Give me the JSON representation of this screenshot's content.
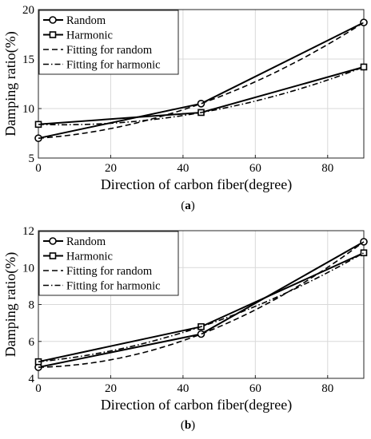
{
  "chart_data": [
    {
      "type": "line",
      "panel_label": {
        "open": "(",
        "letter": "a",
        "close": ")"
      },
      "title": "",
      "xlabel": "Direction of carbon fiber(degree)",
      "ylabel": "Damping ratio(%)",
      "xlim": [
        0,
        90
      ],
      "ylim": [
        5,
        20
      ],
      "xticks": [
        0,
        20,
        40,
        60,
        80
      ],
      "yticks": [
        5,
        10,
        15,
        20
      ],
      "grid": true,
      "legend_position": "top-left",
      "series": [
        {
          "name": "Random",
          "style": "solid",
          "marker": "circle",
          "x": [
            0,
            45,
            90
          ],
          "y": [
            7.0,
            10.5,
            18.7
          ]
        },
        {
          "name": "Harmonic",
          "style": "solid",
          "marker": "square",
          "x": [
            0,
            45,
            90
          ],
          "y": [
            8.4,
            9.6,
            14.2
          ]
        },
        {
          "name": "Fitting for random",
          "style": "dashed",
          "marker": "none",
          "x": [
            0,
            45,
            90
          ],
          "y": [
            7.0,
            10.5,
            18.7
          ]
        },
        {
          "name": "Fitting for harmonic",
          "style": "dashdot",
          "marker": "none",
          "x": [
            0,
            45,
            90
          ],
          "y": [
            8.4,
            9.6,
            14.2
          ]
        }
      ]
    },
    {
      "type": "line",
      "panel_label": {
        "open": "(",
        "letter": "b",
        "close": ")"
      },
      "title": "",
      "xlabel": "Direction of carbon fiber(degree)",
      "ylabel": "Damping ratio(%)",
      "xlim": [
        0,
        90
      ],
      "ylim": [
        4,
        12
      ],
      "xticks": [
        0,
        20,
        40,
        60,
        80
      ],
      "yticks": [
        4,
        6,
        8,
        10,
        12
      ],
      "grid": true,
      "legend_position": "top-left",
      "series": [
        {
          "name": "Random",
          "style": "solid",
          "marker": "circle",
          "x": [
            0,
            45,
            90
          ],
          "y": [
            4.6,
            6.4,
            11.4
          ]
        },
        {
          "name": "Harmonic",
          "style": "solid",
          "marker": "square",
          "x": [
            0,
            45,
            90
          ],
          "y": [
            4.9,
            6.8,
            10.8
          ]
        },
        {
          "name": "Fitting for random",
          "style": "dashed",
          "marker": "none",
          "x": [
            0,
            45,
            90
          ],
          "y": [
            4.6,
            6.4,
            11.4
          ]
        },
        {
          "name": "Fitting for harmonic",
          "style": "dashdot",
          "marker": "none",
          "x": [
            0,
            45,
            90
          ],
          "y": [
            4.9,
            6.8,
            10.8
          ]
        }
      ]
    }
  ]
}
